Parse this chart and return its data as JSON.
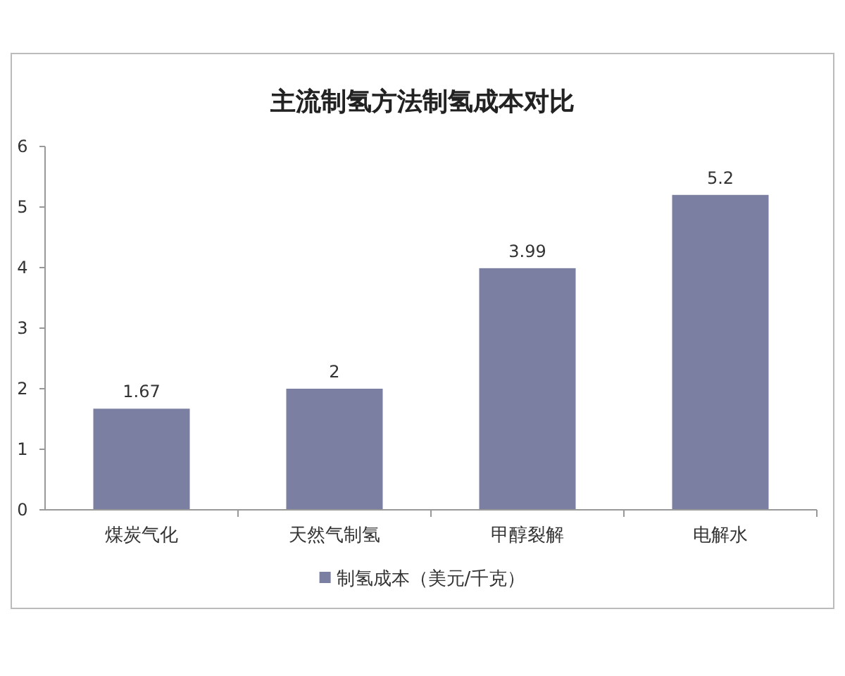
{
  "chart_data": {
    "type": "bar",
    "title": "主流制氢方法制氢成本对比",
    "categories": [
      "煤炭气化",
      "天然气制氢",
      "甲醇裂解",
      "电解水"
    ],
    "series": [
      {
        "name": "制氢成本（美元/千克）",
        "color": "#7b7fa1",
        "values": [
          1.67,
          2,
          3.99,
          5.2
        ]
      }
    ],
    "ylim": [
      0,
      6
    ],
    "yticks": [
      0,
      1,
      2,
      3,
      4,
      5,
      6
    ],
    "data_labels": true,
    "legend": "bottom"
  }
}
